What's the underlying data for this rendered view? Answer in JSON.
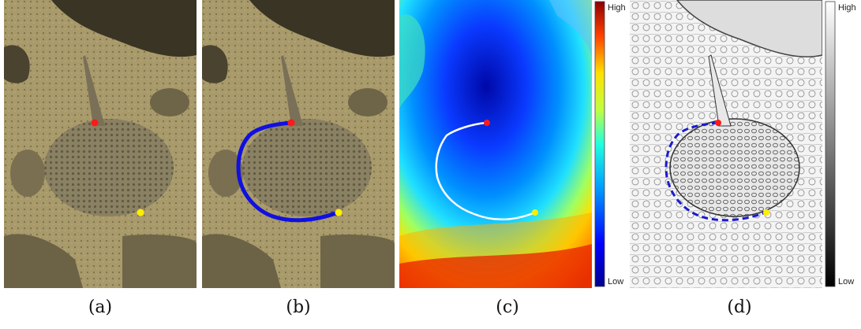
{
  "panels": [
    {
      "id": "a",
      "caption": "(a)"
    },
    {
      "id": "b",
      "caption": "(b)"
    },
    {
      "id": "c",
      "caption": "(c)"
    },
    {
      "id": "d",
      "caption": "(d)"
    }
  ],
  "colorbar_c": {
    "high": "High",
    "low": "Low"
  },
  "colorbar_d": {
    "high": "High",
    "low": "Low"
  },
  "colors": {
    "start_point": "#ff1a1a",
    "end_point": "#ffee00",
    "path_b": "#1010e0",
    "path_c": "#ffffff",
    "path_d": "#1a1ad0"
  }
}
